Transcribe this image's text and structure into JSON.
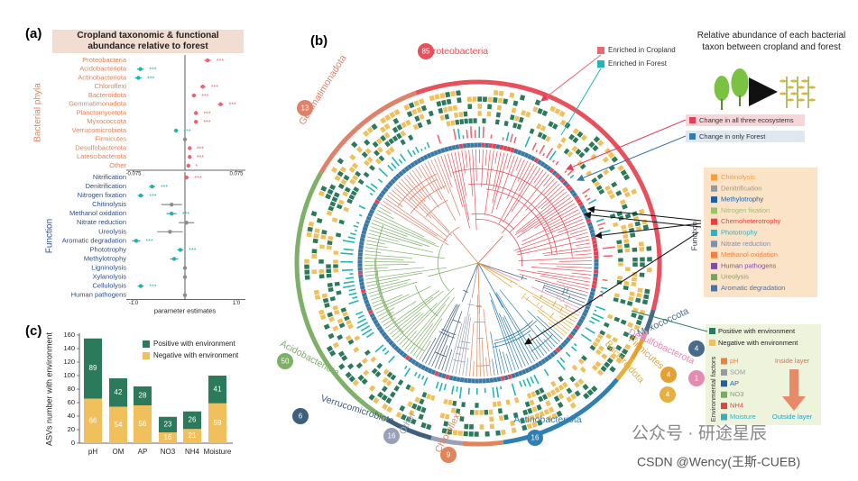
{
  "panel_labels": [
    "(a)",
    "(b)",
    "(c)"
  ],
  "chart_data": [
    {
      "type": "forest",
      "title": "Cropland taxonomic & functional abundance relative to forest",
      "group_label": "Bacterial phyla",
      "categories": [
        "Proteobacteria",
        "Acidobacteriota",
        "Actinobacteriota",
        "Chloroflexi",
        "Bacteroidota",
        "Gemmatimonadota",
        "Planctomycetota",
        "Myxococcota",
        "Verrucomicrobiota",
        "Firmicutes",
        "Desulfobacterota",
        "Latescibacterota",
        "Other"
      ],
      "values": [
        0.033,
        -0.065,
        -0.068,
        0.026,
        0.013,
        0.052,
        0.016,
        0.016,
        -0.013,
        0,
        0.007,
        0.007,
        0.005
      ],
      "errors": [
        0.005,
        0.005,
        0.005,
        0.004,
        0.003,
        0.004,
        0.003,
        0.003,
        0.003,
        0.002,
        0.002,
        0.002,
        0.002
      ],
      "significance": [
        "***",
        "***",
        "***",
        "***",
        "***",
        "***",
        "***",
        "***",
        "***",
        null,
        "***",
        "***",
        "*"
      ],
      "colors": {
        "positive": "#e8646e",
        "negative": "#1fb3b0",
        "ns": "#8c8c8c"
      },
      "xlim": [
        -0.075,
        0.075
      ],
      "xticks": [
        -0.075,
        0.075
      ]
    },
    {
      "type": "forest",
      "group_label": "Function",
      "categories": [
        "Nitrification",
        "Denitrification",
        "Nitrogen fixation",
        "Chitinolysis",
        "Methanol oxidation",
        "Nitrate reduction",
        "Ureolysis",
        "Aromatic degradation",
        "Phototrophy",
        "Methylotrophy",
        "Ligninolysis",
        "Xylanolysis",
        "Cellulolysis",
        "Human pathogens"
      ],
      "values": [
        0.03,
        -0.64,
        -0.86,
        -0.26,
        -0.26,
        0.03,
        -0.29,
        -0.95,
        -0.09,
        -0.21,
        0,
        0,
        -0.86,
        0
      ],
      "errors": [
        0.05,
        0.06,
        0.06,
        0.2,
        0.1,
        0.15,
        0.25,
        0.08,
        0.06,
        0.08,
        0.02,
        0.02,
        0.06,
        0.03
      ],
      "significance": [
        "***",
        "***",
        "***",
        null,
        "***",
        null,
        null,
        "***",
        "***",
        "*",
        null,
        null,
        "***",
        null
      ],
      "colors": {
        "positive": "#e8646e",
        "negative": "#1fb3b0",
        "ns": "#8c8c8c"
      },
      "xlim": [
        -1,
        1
      ],
      "xticks": [
        {
          "value": -1,
          "label": "-1.0"
        },
        {
          "value": 1,
          "label": "1.0"
        }
      ],
      "xlabel": "parameter estimates"
    },
    {
      "type": "bar",
      "stacked": true,
      "ylabel": "ASVs number with environment",
      "categories": [
        "pH",
        "OM",
        "AP",
        "NO3",
        "NH4",
        "Moisture"
      ],
      "series": [
        {
          "name": "Positive with environment",
          "color": "#2b7a5b",
          "values": [
            89,
            42,
            28,
            23,
            26,
            41
          ]
        },
        {
          "name": "Negative with environment",
          "color": "#f0c05c",
          "values": [
            66,
            54,
            56,
            16,
            21,
            59
          ]
        }
      ],
      "ylim": [
        0,
        160
      ],
      "yticks": [
        0,
        20,
        40,
        60,
        80,
        100,
        120,
        140,
        160
      ]
    }
  ],
  "diagram": {
    "phyla": [
      {
        "name": "Proteobacteria",
        "count": 85
      },
      {
        "name": "Gemmatimonadota",
        "count": 13
      },
      {
        "name": "Acidobacteriota",
        "count": 50
      },
      {
        "name": "Verrucomicrobiota",
        "count": 6
      },
      {
        "name": "Other",
        "count": 16
      },
      {
        "name": "Chloroflexi",
        "count": 9
      },
      {
        "name": "Actinobacteriota",
        "count": 16
      },
      {
        "name": "Myxococcota",
        "count": 4
      },
      {
        "name": "Desulfobacterota",
        "count": 1
      },
      {
        "name": "Firmicutes",
        "count": 4
      },
      {
        "name": "Bacteroidota",
        "count": 4
      }
    ],
    "enrichment": [
      "Enriched in Cropland",
      "Enriched in Forest"
    ],
    "abundance_note": "Relative abundance of each bacterial taxon between cropland and forest",
    "ecosystem_change": [
      "Change in all three ecosystems",
      "Change in only Forest"
    ],
    "function_title": "Function",
    "functions": [
      "Chitinolysis",
      "Denitrification",
      "Methylotrophy",
      "Nitrogen fixation",
      "Chemoheterotrophy",
      "Phototrophy",
      "Nitrate reduction",
      "Methanol oxidation",
      "Human pathogens",
      "Ureolysis",
      "Aromatic degradation"
    ],
    "environment_legend": [
      "Positive with environment",
      "Negative with environment"
    ],
    "environment_title": "Environmental factors",
    "factors": [
      "pH",
      "SOM",
      "AP",
      "NO3",
      "NH4",
      "Moisture"
    ],
    "inside_label": "Inside layer",
    "outside_label": "Outside layer"
  },
  "watermark": [
    "公众号 · 研途星辰",
    "CSDN @Wency(王斯-CUEB)"
  ]
}
